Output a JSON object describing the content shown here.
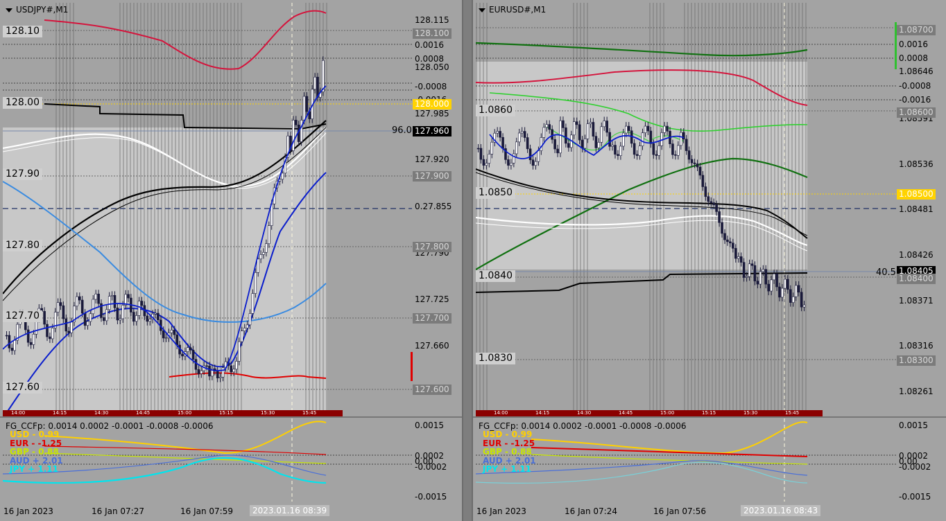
{
  "left": {
    "title": "USDJPY#,M1",
    "price_axis": [
      "128.115",
      "0.0016",
      "0.0008",
      "128.050",
      "-0.0008",
      "-0.0016",
      "127.985",
      "127.920",
      "0.27.855",
      "127.790",
      "127.725",
      "127.660"
    ],
    "price_tags": [
      "128.100",
      "128.000",
      "127.960",
      "127.900",
      "127.800",
      "127.700",
      "127.600"
    ],
    "levels": [
      "128.10",
      "128.00",
      "127.90",
      "127.80",
      "127.70",
      "127.60"
    ],
    "side_value": "96.0",
    "mini_times": [
      "14:00",
      "14:15",
      "14:30",
      "14:45",
      "15:00",
      "15:15",
      "15:30",
      "15:45"
    ],
    "indicator_title": "FG_CCFp: 0.0014 0.0002 -0.0001 -0.0008 -0.0006",
    "legend": [
      "USD - 0.99",
      "EUR - -1.25",
      "GBP - 0.88",
      "AUD + 2.01",
      "JPY + 1.11"
    ],
    "ind_axis": [
      "0.0015",
      "0.0002",
      "0.00",
      "-0.0002",
      "-0.0015"
    ],
    "times": [
      "16 Jan 2023",
      "16 Jan 07:27",
      "16 Jan 07:59"
    ],
    "current_time": "2023.01.16 08:39"
  },
  "right": {
    "title": "EURUSD#,M1",
    "price_axis": [
      "0.0016",
      "0.0008",
      "1.08646",
      "-0.0008",
      "-0.0016",
      "1.08591",
      "1.08536",
      "1.08481",
      "1.08426",
      "1.08371",
      "1.08316",
      "1.08261"
    ],
    "price_tags": [
      "1.08700",
      "1.08600",
      "1.08500",
      "1.08405",
      "1.08400",
      "1.08300"
    ],
    "levels": [
      "1.0860",
      "1.0850",
      "1.0840",
      "1.0830"
    ],
    "side_value": "40.5",
    "mini_times": [
      "14:00",
      "14:15",
      "14:30",
      "14:45",
      "15:00",
      "15:15",
      "15:30",
      "15:45"
    ],
    "indicator_title": "FG_CCFp: 0.0014 0.0002 -0.0001 -0.0008 -0.0006",
    "legend": [
      "USD - 0.99",
      "EUR - -1.25",
      "GBP - 0.88",
      "AUD + 2.01",
      "JPY + 1.11"
    ],
    "ind_axis": [
      "0.0015",
      "0.0002",
      "0.00",
      "-0.0002",
      "-0.0015"
    ],
    "times": [
      "16 Jan 2023",
      "16 Jan 07:24",
      "16 Jan 07:56"
    ],
    "current_time": "2023.01.16 08:43"
  },
  "colors": {
    "usd": "#ffd000",
    "eur": "#ff0000",
    "gbp": "#c8e600",
    "aud": "#4a6fd8",
    "jpy": "#00e5ee",
    "bear": "#f08080",
    "bull": "#5ab4f0",
    "candle": "#1a1a2e"
  }
}
